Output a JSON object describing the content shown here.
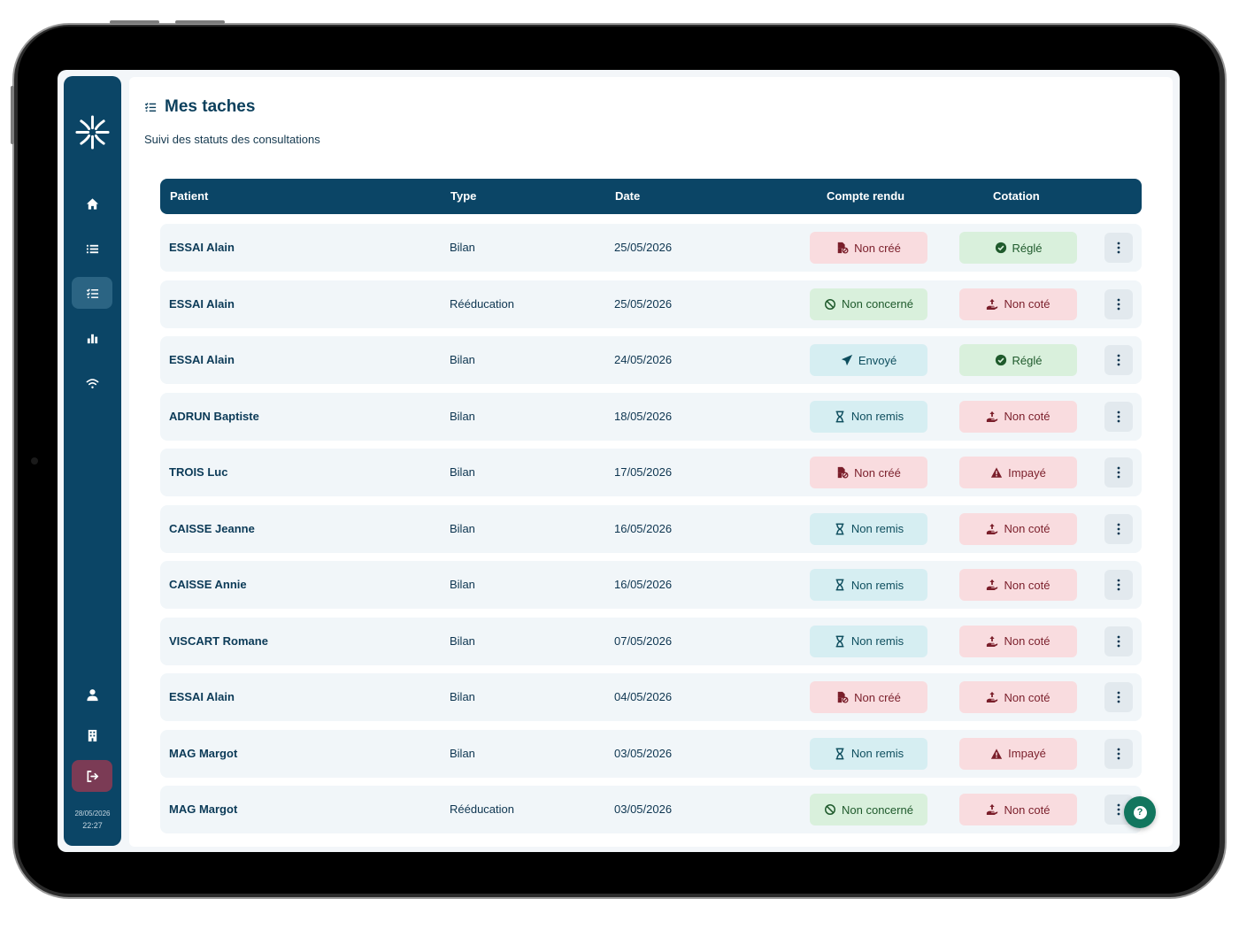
{
  "app": {
    "title": "Mes taches",
    "subtitle": "Suivi des statuts des consultations"
  },
  "sidebar": {
    "items": [
      {
        "icon": "home-icon"
      },
      {
        "icon": "list-icon"
      },
      {
        "icon": "tasks-icon"
      },
      {
        "icon": "stats-icon"
      },
      {
        "icon": "wifi-icon"
      }
    ],
    "bottom_items": [
      {
        "icon": "user-icon"
      },
      {
        "icon": "building-icon"
      },
      {
        "icon": "logout-icon"
      }
    ],
    "date": "28/05/2026",
    "time": "22:27"
  },
  "table": {
    "headers": {
      "patient": "Patient",
      "type": "Type",
      "date": "Date",
      "compte_rendu": "Compte rendu",
      "cotation": "Cotation"
    },
    "rows": [
      {
        "patient": "ESSAI Alain",
        "type": "Bilan",
        "date": "25/05/2026",
        "compte_rendu": "Non créé",
        "cotation": "Réglé"
      },
      {
        "patient": "ESSAI Alain",
        "type": "Rééducation",
        "date": "25/05/2026",
        "compte_rendu": "Non concerné",
        "cotation": "Non coté"
      },
      {
        "patient": "ESSAI Alain",
        "type": "Bilan",
        "date": "24/05/2026",
        "compte_rendu": "Envoyé",
        "cotation": "Réglé"
      },
      {
        "patient": "ADRUN Baptiste",
        "type": "Bilan",
        "date": "18/05/2026",
        "compte_rendu": "Non remis",
        "cotation": "Non coté"
      },
      {
        "patient": "TROIS Luc",
        "type": "Bilan",
        "date": "17/05/2026",
        "compte_rendu": "Non créé",
        "cotation": "Impayé"
      },
      {
        "patient": "CAISSE Jeanne",
        "type": "Bilan",
        "date": "16/05/2026",
        "compte_rendu": "Non remis",
        "cotation": "Non coté"
      },
      {
        "patient": "CAISSE Annie",
        "type": "Bilan",
        "date": "16/05/2026",
        "compte_rendu": "Non remis",
        "cotation": "Non coté"
      },
      {
        "patient": "VISCART Romane",
        "type": "Bilan",
        "date": "07/05/2026",
        "compte_rendu": "Non remis",
        "cotation": "Non coté"
      },
      {
        "patient": "ESSAI Alain",
        "type": "Bilan",
        "date": "04/05/2026",
        "compte_rendu": "Non créé",
        "cotation": "Non coté"
      },
      {
        "patient": "MAG Margot",
        "type": "Bilan",
        "date": "03/05/2026",
        "compte_rendu": "Non remis",
        "cotation": "Impayé"
      },
      {
        "patient": "MAG Margot",
        "type": "Rééducation",
        "date": "03/05/2026",
        "compte_rendu": "Non concerné",
        "cotation": "Non coté"
      }
    ]
  },
  "status_styles": {
    "Non créé": {
      "bg": "#f9dcdf",
      "fg": "#7a1e2a",
      "icon": "file-blocked-icon"
    },
    "Non concerné": {
      "bg": "#d9f0dc",
      "fg": "#1f5a2c",
      "icon": "ban-icon"
    },
    "Envoyé": {
      "bg": "#d6eef2",
      "fg": "#0e4e5e",
      "icon": "send-icon"
    },
    "Non remis": {
      "bg": "#d6eef2",
      "fg": "#0e4e5e",
      "icon": "hourglass-icon"
    },
    "Réglé": {
      "bg": "#d9f0dc",
      "fg": "#1f5a2c",
      "icon": "check-circle-icon"
    },
    "Non coté": {
      "bg": "#f9dcdf",
      "fg": "#7a1e2a",
      "icon": "hand-coin-icon"
    },
    "Impayé": {
      "bg": "#f9dcdf",
      "fg": "#7a1e2a",
      "icon": "warning-icon"
    }
  },
  "help_button": {
    "label": "?"
  }
}
